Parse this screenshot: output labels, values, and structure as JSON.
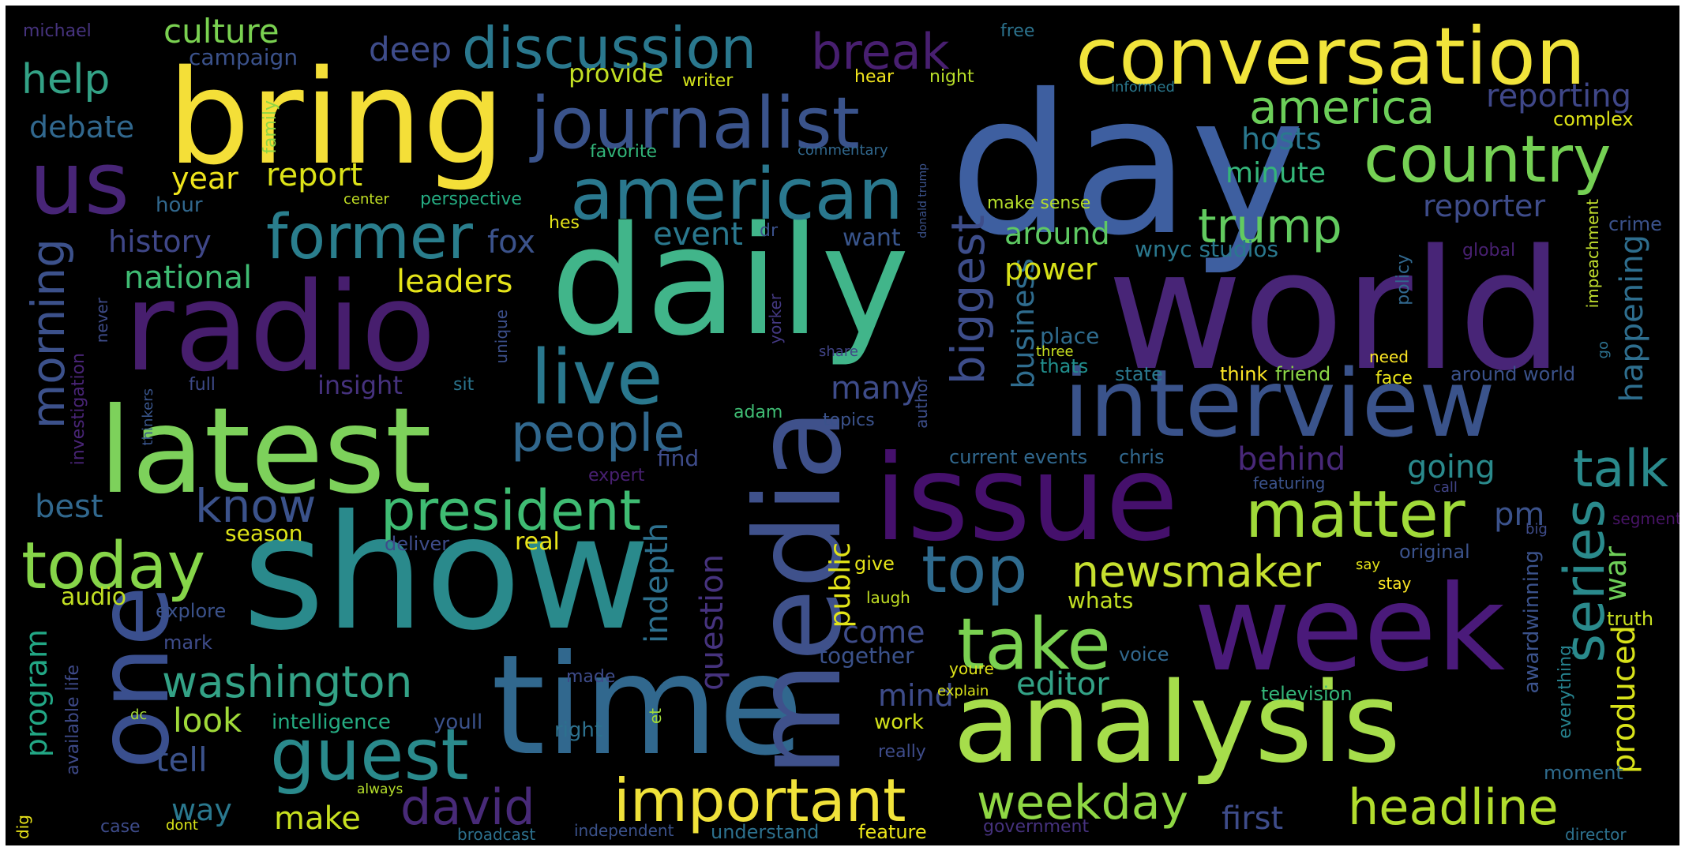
{
  "wordcloud": {
    "background": "#000000",
    "palette": "viridis",
    "words": {
      "day": "day",
      "world": "world",
      "daily": "daily",
      "show": "show",
      "time": "time",
      "media": "media",
      "bring": "bring",
      "radio": "radio",
      "latest": "latest",
      "analysis": "analysis",
      "issue": "issue",
      "week": "week",
      "interview": "interview",
      "conversation": "conversation",
      "one": "one",
      "us": "us",
      "journalist": "journalist",
      "american": "american",
      "former": "former",
      "discussion": "discussion",
      "live": "live",
      "guest": "guest",
      "today": "today",
      "president": "president",
      "people": "people",
      "take": "take",
      "top": "top",
      "matter": "matter",
      "country": "country",
      "talk": "talk",
      "important": "important",
      "headline": "headline",
      "weekday": "weekday",
      "newsmaker": "newsmaker",
      "washington": "washington",
      "david": "david",
      "trump": "trump",
      "america": "america",
      "break": "break",
      "know": "know",
      "series": "series",
      "morning": "morning",
      "biggest": "biggest",
      "indepth": "indepth",
      "question": "question",
      "produced": "produced",
      "happening": "happening",
      "business": "business",
      "program": "program",
      "war": "war",
      "public": "public",
      "awardwinning": "awardwinning",
      "impeachment": "impeachment",
      "policy": "policy",
      "everything": "everything",
      "investigation": "investigation",
      "unique": "unique",
      "never": "never",
      "thinkers": "thinkers",
      "family": "family",
      "availablelife": "available life",
      "dig": "dig",
      "always": "always",
      "yorker": "yorker",
      "donaldtrump": "donald trump",
      "author": "author",
      "et": "et",
      "go": "go",
      "culture": "culture",
      "campaign": "campaign",
      "michael": "michael",
      "help": "help",
      "debate": "debate",
      "deep": "deep",
      "provide": "provide",
      "writer": "writer",
      "favorite": "favorite",
      "year": "year",
      "report": "report",
      "hour": "hour",
      "center": "center",
      "perspective": "perspective",
      "hes": "hes",
      "history": "history",
      "fox": "fox",
      "event": "event",
      "dr": "dr",
      "want": "want",
      "national": "national",
      "leaders": "leaders",
      "power": "power",
      "hear": "hear",
      "night": "night",
      "free": "free",
      "commentary": "commentary",
      "makesense": "make sense",
      "around": "around",
      "informed": "informed",
      "hosts": "hosts",
      "minute": "minute",
      "reporting": "reporting",
      "complex": "complex",
      "reporter": "reporter",
      "crime": "crime",
      "wnycstudios": "wnyc studios",
      "global": "global",
      "insight": "insight",
      "full": "full",
      "sit": "sit",
      "place": "place",
      "thats": "thats",
      "share": "share",
      "three": "three",
      "need": "need",
      "state": "state",
      "think": "think",
      "friend": "friend",
      "face": "face",
      "aroundworld": "around world",
      "many": "many",
      "adam": "adam",
      "topics": "topics",
      "find": "find",
      "expert": "expert",
      "currentevents": "current events",
      "chris": "chris",
      "behind": "behind",
      "featuring": "featuring",
      "going": "going",
      "call": "call",
      "pm": "pm",
      "big": "big",
      "segment": "segment",
      "best": "best",
      "season": "season",
      "deliver": "deliver",
      "real": "real",
      "original": "original",
      "say": "say",
      "stay": "stay",
      "give": "give",
      "audio": "audio",
      "explore": "explore",
      "laugh": "laugh",
      "whats": "whats",
      "come": "come",
      "mark": "mark",
      "together": "together",
      "youre": "youre",
      "voice": "voice",
      "truth": "truth",
      "made": "made",
      "mind": "mind",
      "explain": "explain",
      "editor": "editor",
      "television": "television",
      "look": "look",
      "intelligence": "intelligence",
      "youll": "youll",
      "dc": "dc",
      "right": "right",
      "work": "work",
      "tell": "tell",
      "really": "really",
      "moment": "moment",
      "way": "way",
      "make": "make",
      "first": "first",
      "case": "case",
      "dont": "dont",
      "broadcast": "broadcast",
      "independent": "independent",
      "understand": "understand",
      "feature": "feature",
      "government": "government",
      "director": "director"
    }
  }
}
